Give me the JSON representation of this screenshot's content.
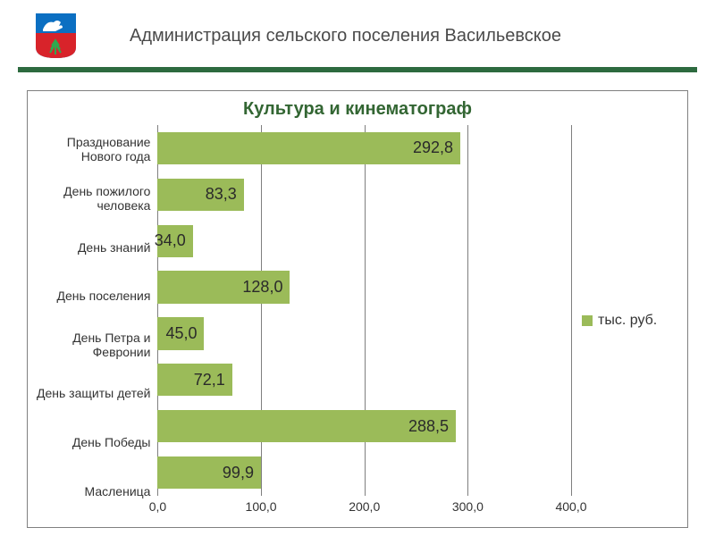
{
  "header": {
    "title": "Администрация сельского поселения Васильевское",
    "emblem": {
      "top_color": "#0b6fc2",
      "bottom_color": "#d8232a",
      "horse_color": "#ffffff",
      "tree_color": "#2fa84f"
    },
    "rule_color": "#2d6a3f"
  },
  "chart": {
    "type": "bar-horizontal",
    "title": "Культура и кинематограф",
    "title_color": "#336633",
    "border_color": "#808080",
    "background_color": "#ffffff",
    "bar_color": "#9bbb59",
    "gridline_color": "#7f7f7f",
    "label_fontsize": 14,
    "value_fontsize": 18,
    "xlim": [
      0,
      400
    ],
    "xtick_step": 100,
    "xticks": [
      "0,0",
      "100,0",
      "200,0",
      "300,0",
      "400,0"
    ],
    "legend": {
      "label": "тыс. руб.",
      "color": "#9bbb59"
    },
    "categories": [
      {
        "label": "Празднование\nНового года",
        "value": 292.8,
        "display": "292,8"
      },
      {
        "label": "День пожилого\nчеловека",
        "value": 83.3,
        "display": "83,3"
      },
      {
        "label": "День знаний",
        "value": 34.0,
        "display": "34,0"
      },
      {
        "label": "День поселения",
        "value": 128.0,
        "display": "128,0"
      },
      {
        "label": "День Петра и\nФевронии",
        "value": 45.0,
        "display": "45,0"
      },
      {
        "label": "День защиты детей",
        "value": 72.1,
        "display": "72,1"
      },
      {
        "label": "День Победы",
        "value": 288.5,
        "display": "288,5"
      },
      {
        "label": "Масленица",
        "value": 99.9,
        "display": "99,9"
      }
    ]
  }
}
